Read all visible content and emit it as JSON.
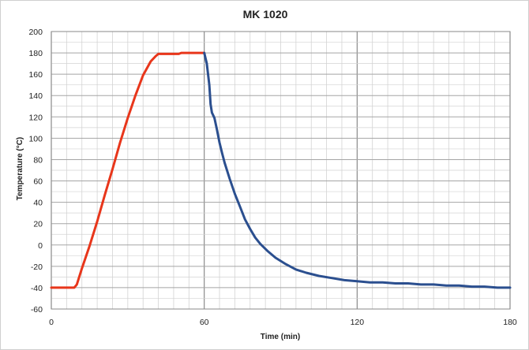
{
  "chart_data": {
    "type": "line",
    "title": "MK 1020",
    "xlabel": "Time (min)",
    "ylabel": "Temperature (°C)",
    "xlim": [
      0,
      180
    ],
    "ylim": [
      -60,
      200
    ],
    "x_ticks": [
      0,
      60,
      120,
      180
    ],
    "y_ticks": [
      200,
      180,
      160,
      140,
      120,
      100,
      80,
      60,
      40,
      20,
      0,
      -20,
      -40,
      -60
    ],
    "grid": true,
    "legend": "none",
    "series": [
      {
        "color": "#e8361b",
        "x": [
          0,
          9,
          10,
          12,
          15,
          18,
          21,
          24,
          27,
          30,
          33,
          36,
          39,
          41,
          42,
          43,
          44,
          46,
          48,
          50,
          51,
          54,
          57,
          60
        ],
        "y": [
          -40,
          -40,
          -37,
          -22,
          -1,
          22,
          47,
          71,
          96,
          119,
          140,
          159,
          172,
          177,
          179,
          179,
          179,
          179,
          179,
          179,
          180,
          180,
          180,
          180
        ]
      },
      {
        "color": "#2b4f8f",
        "x": [
          60,
          61,
          62,
          62.5,
          63,
          64,
          65,
          66,
          67,
          68,
          70,
          72,
          74,
          76,
          78,
          80,
          82,
          85,
          88,
          92,
          96,
          100,
          105,
          110,
          115,
          120,
          125,
          130,
          135,
          140,
          145,
          150,
          155,
          160,
          165,
          170,
          175,
          180
        ],
        "y": [
          180,
          170,
          150,
          132,
          124,
          119,
          108,
          96,
          86,
          77,
          62,
          48,
          36,
          24,
          15,
          7,
          1,
          -6,
          -12,
          -18,
          -23,
          -26,
          -29,
          -31,
          -33,
          -34,
          -35,
          -35,
          -36,
          -36,
          -37,
          -37,
          -38,
          -38,
          -39,
          -39,
          -40,
          -40
        ]
      }
    ]
  }
}
